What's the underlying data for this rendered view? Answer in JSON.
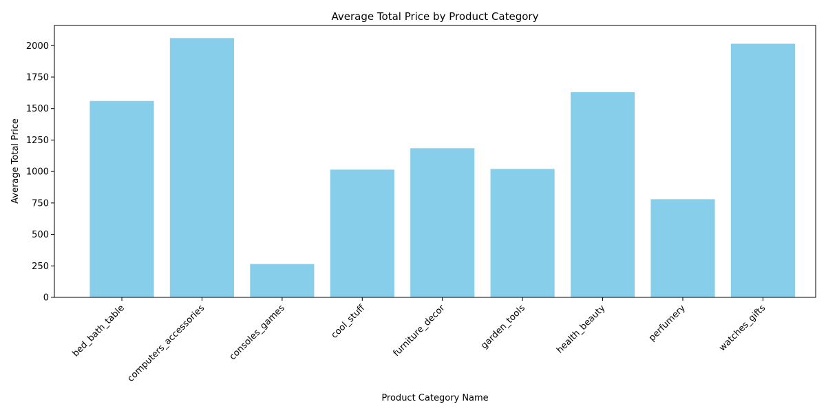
{
  "chart_data": {
    "type": "bar",
    "title": "Average Total Price by Product Category",
    "xlabel": "Product Category Name",
    "ylabel": "Average Total Price",
    "categories": [
      "bed_bath_table",
      "computers_accessories",
      "consoles_games",
      "cool_stuff",
      "furniture_decor",
      "garden_tools",
      "health_beauty",
      "perfumery",
      "watches_gifts"
    ],
    "values": [
      1560,
      2060,
      265,
      1015,
      1185,
      1020,
      1630,
      780,
      2015
    ],
    "ylim": [
      0,
      2160
    ],
    "yticks": [
      0,
      250,
      500,
      750,
      1000,
      1250,
      1500,
      1750,
      2000
    ],
    "bar_color": "#87CEEB",
    "grid": false,
    "legend": "none"
  }
}
